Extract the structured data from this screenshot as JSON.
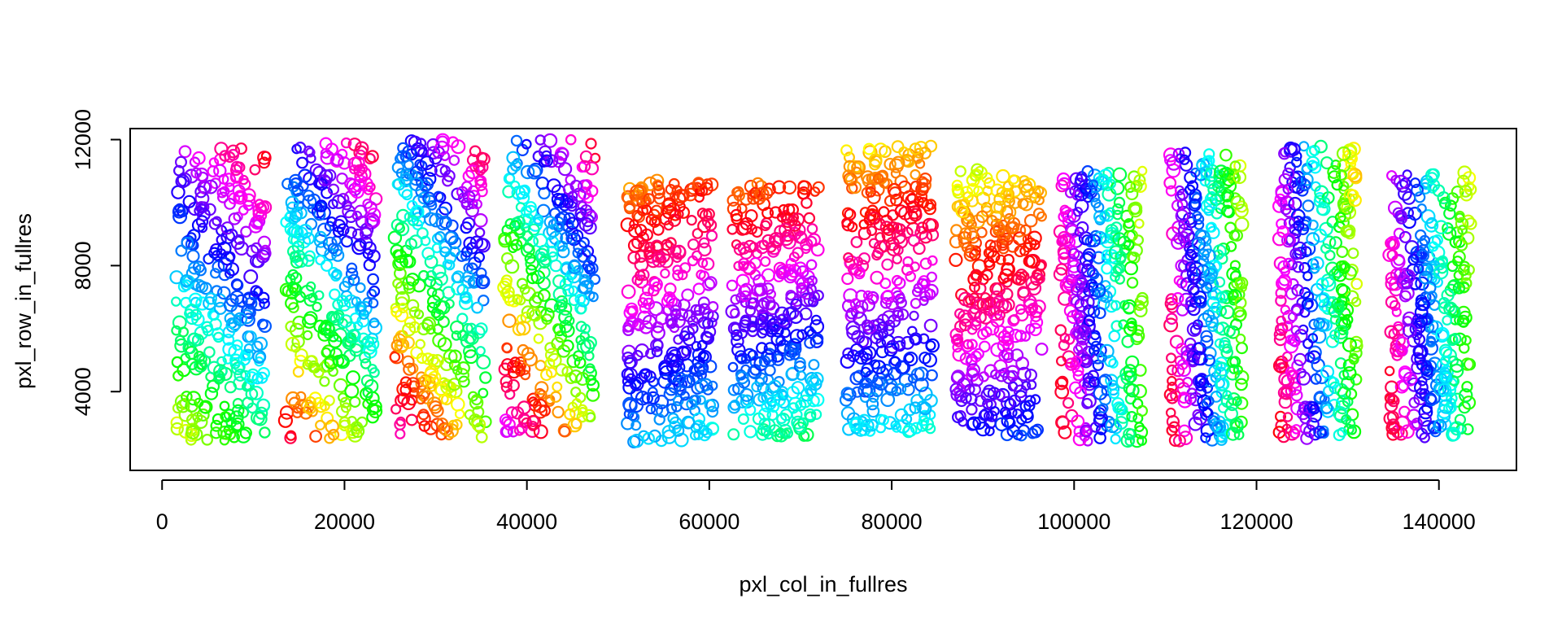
{
  "chart_data": {
    "type": "scatter",
    "title": "",
    "xlabel": "pxl_col_in_fullres",
    "ylabel": "pxl_row_in_fullres",
    "xlim": [
      -3500,
      148500
    ],
    "ylim": [
      1500,
      12350
    ],
    "x_ticks": [
      {
        "value": 0,
        "label": "0"
      },
      {
        "value": 20000,
        "label": "20000"
      },
      {
        "value": 40000,
        "label": "40000"
      },
      {
        "value": 60000,
        "label": "60000"
      },
      {
        "value": 80000,
        "label": "80000"
      },
      {
        "value": 100000,
        "label": "100000"
      },
      {
        "value": 120000,
        "label": "120000"
      },
      {
        "value": 140000,
        "label": "140000"
      }
    ],
    "y_ticks": [
      {
        "value": 4000,
        "label": "4000"
      },
      {
        "value": 8000,
        "label": "8000"
      },
      {
        "value": 12000,
        "label": "12000"
      }
    ],
    "grid": false,
    "marker": "open circle",
    "color_mapping": "rainbow hue gradient across each section",
    "sections": [
      {
        "x_range": [
          1500,
          11500
        ],
        "y_range": [
          2400,
          11800
        ],
        "hue_start": 0,
        "hue_dir": [
          -0.35,
          -1.0
        ],
        "color_span": 300
      },
      {
        "x_range": [
          13500,
          23500
        ],
        "y_range": [
          2500,
          11900
        ],
        "hue_start": 0,
        "hue_dir": [
          -0.45,
          -1.0
        ],
        "color_span": 380
      },
      {
        "x_range": [
          25500,
          35500
        ],
        "y_range": [
          2500,
          12000
        ],
        "hue_start": 0,
        "hue_dir": [
          -0.5,
          -1.0
        ],
        "color_span": 420
      },
      {
        "x_range": [
          37500,
          47500
        ],
        "y_range": [
          2700,
          12000
        ],
        "hue_start": 0,
        "hue_dir": [
          -0.55,
          -1.0
        ],
        "color_span": 440
      },
      {
        "x_range": [
          51000,
          60500
        ],
        "y_range": [
          2400,
          10700
        ],
        "hue_start": 40,
        "hue_dir": [
          0.15,
          -1.0
        ],
        "color_span": 230
      },
      {
        "x_range": [
          62500,
          72000
        ],
        "y_range": [
          2500,
          10600
        ],
        "hue_start": 30,
        "hue_dir": [
          0.1,
          -1.0
        ],
        "color_span": 250
      },
      {
        "x_range": [
          75000,
          84500
        ],
        "y_range": [
          2700,
          11800
        ],
        "hue_start": 60,
        "hue_dir": [
          0.05,
          -1.0
        ],
        "color_span": 250
      },
      {
        "x_range": [
          87000,
          96500
        ],
        "y_range": [
          2600,
          11100
        ],
        "hue_start": 80,
        "hue_dir": [
          0.1,
          -1.0
        ],
        "color_span": 220
      },
      {
        "x_range": [
          98500,
          107500
        ],
        "y_range": [
          2400,
          11100
        ],
        "hue_start": 0,
        "hue_dir": [
          1.0,
          0.2
        ],
        "color_span": 300
      },
      {
        "x_range": [
          110500,
          118500
        ],
        "y_range": [
          2400,
          11600
        ],
        "hue_start": 0,
        "hue_dir": [
          1.0,
          0.25
        ],
        "color_span": 300
      },
      {
        "x_range": [
          122500,
          131000
        ],
        "y_range": [
          2500,
          11800
        ],
        "hue_start": 0,
        "hue_dir": [
          1.0,
          0.3
        ],
        "color_span": 320
      },
      {
        "x_range": [
          134500,
          143500
        ],
        "y_range": [
          2500,
          11000
        ],
        "hue_start": 0,
        "hue_dir": [
          1.0,
          0.25
        ],
        "color_span": 300
      }
    ]
  }
}
